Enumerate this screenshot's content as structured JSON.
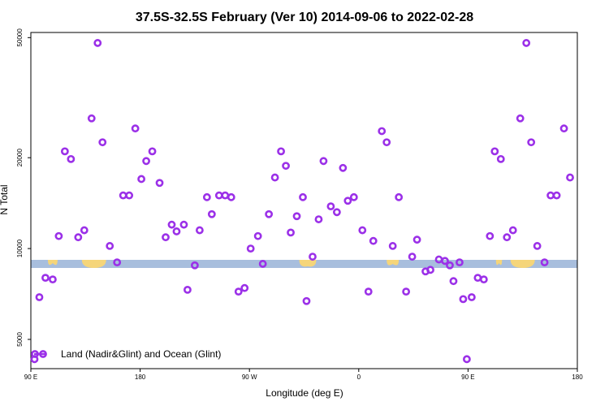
{
  "chart_data": {
    "type": "scatter",
    "title": "37.5S-32.5S February (Ver 10)   2014-09-06 to 2022-02-28",
    "xlabel": "Longitude (deg E)",
    "ylabel": "N Total",
    "x_scale": "linear",
    "y_scale": "log",
    "xlim": [
      90,
      540
    ],
    "ylim": [
      4000,
      52000
    ],
    "x_ticks": [
      {
        "value": 90,
        "label": "90 E"
      },
      {
        "value": 180,
        "label": "180"
      },
      {
        "value": 270,
        "label": "90 W"
      },
      {
        "value": 360,
        "label": "0"
      },
      {
        "value": 450,
        "label": "90 E"
      },
      {
        "value": 540,
        "label": "180"
      }
    ],
    "y_ticks": [
      {
        "value": 5000,
        "label": "5000"
      },
      {
        "value": 10000,
        "label": "10000"
      },
      {
        "value": 20000,
        "label": "20000"
      },
      {
        "value": 50000,
        "label": "50000"
      }
    ],
    "grid": false,
    "legend": {
      "position": "bottom-left",
      "entries": [
        {
          "label": "Land (Nadir&Glint) and Ocean (Glint)",
          "color": "#9b30e8"
        }
      ]
    },
    "colors": {
      "series": "#9b30e8",
      "ocean_band": "#a8bedd",
      "land_band": "#f5d57a"
    },
    "series": [
      {
        "name": "Land (Nadir&Glint) and Ocean (Glint)",
        "points": [
          [
            93,
            4300
          ],
          [
            97,
            6900
          ],
          [
            102,
            8000
          ],
          [
            108,
            7900
          ],
          [
            113,
            11000
          ],
          [
            118,
            21000
          ],
          [
            123,
            19800
          ],
          [
            129,
            10900
          ],
          [
            134,
            11500
          ],
          [
            140,
            27000
          ],
          [
            145,
            48000
          ],
          [
            149,
            22500
          ],
          [
            155,
            10200
          ],
          [
            161,
            9000
          ],
          [
            166,
            15000
          ],
          [
            171,
            15000
          ],
          [
            176,
            25000
          ],
          [
            181,
            17000
          ],
          [
            185,
            19500
          ],
          [
            190,
            21000
          ],
          [
            196,
            16500
          ],
          [
            201,
            10900
          ],
          [
            206,
            12000
          ],
          [
            210,
            11400
          ],
          [
            216,
            12000
          ],
          [
            219,
            7300
          ],
          [
            225,
            8800
          ],
          [
            229,
            11500
          ],
          [
            235,
            14800
          ],
          [
            239,
            13000
          ],
          [
            245,
            15000
          ],
          [
            250,
            15000
          ],
          [
            255,
            14800
          ],
          [
            261,
            7200
          ],
          [
            266,
            7400
          ],
          [
            271,
            10000
          ],
          [
            277,
            11000
          ],
          [
            281,
            8900
          ],
          [
            286,
            13000
          ],
          [
            291,
            17200
          ],
          [
            296,
            21000
          ],
          [
            300,
            18800
          ],
          [
            304,
            11300
          ],
          [
            309,
            12800
          ],
          [
            314,
            14800
          ],
          [
            317,
            6700
          ],
          [
            322,
            9400
          ],
          [
            327,
            12500
          ],
          [
            331,
            19500
          ],
          [
            337,
            13800
          ],
          [
            342,
            13200
          ],
          [
            347,
            18500
          ],
          [
            351,
            14400
          ],
          [
            356,
            14800
          ],
          [
            363,
            11500
          ],
          [
            368,
            7200
          ],
          [
            372,
            10600
          ],
          [
            379,
            24500
          ],
          [
            383,
            22500
          ],
          [
            388,
            10200
          ],
          [
            393,
            14800
          ],
          [
            399,
            7200
          ],
          [
            404,
            9400
          ],
          [
            408,
            10700
          ],
          [
            415,
            8400
          ],
          [
            419,
            8500
          ],
          [
            426,
            9200
          ],
          [
            431,
            9100
          ],
          [
            435,
            8800
          ],
          [
            438,
            7800
          ],
          [
            443,
            9000
          ],
          [
            446,
            6800
          ],
          [
            449,
            4300
          ],
          [
            453,
            6900
          ],
          [
            458,
            8000
          ],
          [
            463,
            7900
          ],
          [
            468,
            11000
          ],
          [
            472,
            21000
          ],
          [
            477,
            19800
          ],
          [
            482,
            10900
          ],
          [
            487,
            11500
          ],
          [
            493,
            27000
          ],
          [
            498,
            48000
          ],
          [
            502,
            22500
          ],
          [
            507,
            10200
          ],
          [
            513,
            9000
          ],
          [
            518,
            15000
          ],
          [
            523,
            15000
          ],
          [
            529,
            25000
          ],
          [
            534,
            17200
          ]
        ]
      }
    ]
  }
}
